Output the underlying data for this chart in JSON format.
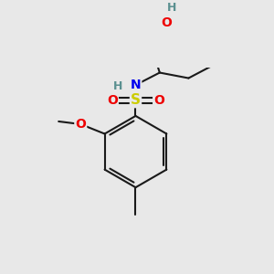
{
  "bg_color": "#e8e8e8",
  "bond_color": "#1a1a1a",
  "bond_width": 1.5,
  "colors": {
    "C": "#1a1a1a",
    "H": "#5a9090",
    "N": "#0000ee",
    "O": "#ee0000",
    "S": "#cccc00",
    "bond": "#1a1a1a"
  },
  "figsize": [
    3.0,
    3.0
  ],
  "dpi": 100
}
